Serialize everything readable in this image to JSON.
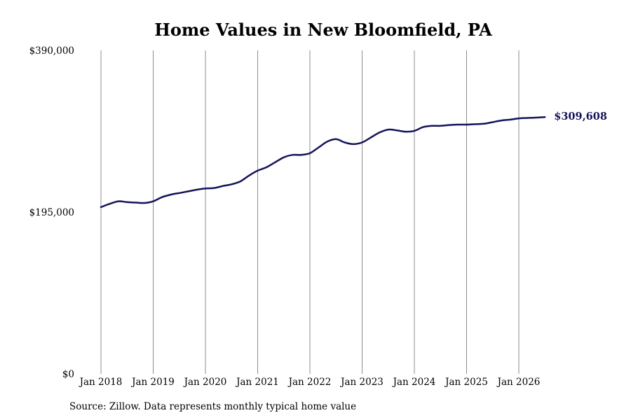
{
  "chart_data": {
    "type": "line",
    "title": "Home Values in New Bloomfield, PA",
    "xlabel": "",
    "ylabel": "",
    "ylim": [
      0,
      390000
    ],
    "y_ticks": [
      0,
      195000,
      390000
    ],
    "y_tick_labels": [
      "$0",
      "$195,000",
      "$390,000"
    ],
    "x_ticks": [
      "2018-01",
      "2019-01",
      "2020-01",
      "2021-01",
      "2022-01",
      "2023-01",
      "2024-01",
      "2025-01",
      "2026-01"
    ],
    "x_tick_labels": [
      "Jan 2018",
      "Jan 2019",
      "Jan 2020",
      "Jan 2021",
      "Jan 2022",
      "Jan 2023",
      "Jan 2024",
      "Jan 2025",
      "Jan 2026"
    ],
    "xlim": [
      "2018-01",
      "2026-07"
    ],
    "grid": "vertical",
    "legend": "none",
    "line_color": "#14145a",
    "series": [
      {
        "x": [
          "2018-01",
          "2018-03",
          "2018-05",
          "2018-07",
          "2018-09",
          "2018-11",
          "2019-01",
          "2019-03",
          "2019-05",
          "2019-07",
          "2019-09",
          "2019-11",
          "2020-01",
          "2020-03",
          "2020-05",
          "2020-07",
          "2020-09",
          "2020-11",
          "2021-01",
          "2021-03",
          "2021-05",
          "2021-07",
          "2021-09",
          "2021-11",
          "2022-01",
          "2022-03",
          "2022-05",
          "2022-07",
          "2022-09",
          "2022-11",
          "2023-01",
          "2023-03",
          "2023-05",
          "2023-07",
          "2023-09",
          "2023-11",
          "2024-01",
          "2024-03",
          "2024-05",
          "2024-07",
          "2024-09",
          "2024-11",
          "2025-01",
          "2025-03",
          "2025-05",
          "2025-07",
          "2025-09",
          "2025-11",
          "2026-01",
          "2026-03",
          "2026-05",
          "2026-07"
        ],
        "y": [
          201000,
          205000,
          208000,
          207000,
          206500,
          206000,
          208000,
          213000,
          216000,
          218000,
          220000,
          222000,
          223500,
          224000,
          226500,
          228500,
          232000,
          239000,
          245000,
          249000,
          255000,
          261000,
          264000,
          264000,
          266000,
          273000,
          280000,
          283000,
          279000,
          277000,
          279000,
          285000,
          291000,
          294500,
          293500,
          292000,
          293000,
          297500,
          299000,
          299000,
          300000,
          300500,
          300500,
          301000,
          301500,
          303500,
          305500,
          306500,
          308000,
          308500,
          309000,
          309608
        ]
      }
    ],
    "annotations": [
      {
        "label": "$309,608",
        "x": "2026-07",
        "y": 309608
      }
    ]
  },
  "footer": {
    "source": "Source: Zillow. Data represents monthly typical home value"
  }
}
